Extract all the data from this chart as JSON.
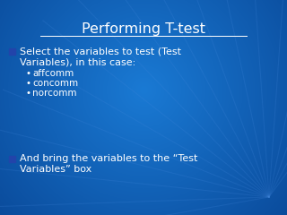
{
  "title": "Performing T-test",
  "title_fontsize": 11.5,
  "title_color": "#FFFFFF",
  "bg_color": "#1060C0",
  "bg_color_center": "#1a7ad4",
  "bg_color_edge": "#0a4a9a",
  "bullet1_line1": "Select the variables to test (Test",
  "bullet1_line2": "Variables), in this case:",
  "sub_bullets": [
    "affcomm",
    "concomm",
    "norcomm"
  ],
  "bullet2_line1": "And bring the variables to the “Test",
  "bullet2_line2": "Variables” box",
  "text_color": "#FFFFFF",
  "bullet_sq_color": "#2255AA",
  "body_fontsize": 8.0,
  "sub_fontsize": 7.5
}
